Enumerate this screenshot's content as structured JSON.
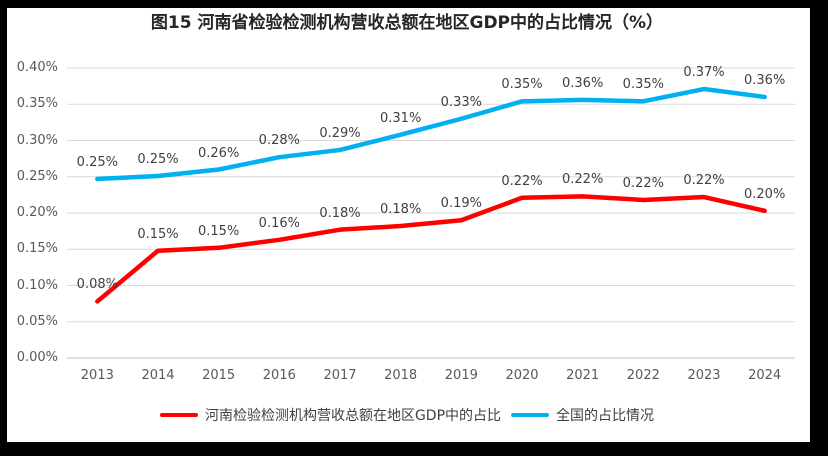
{
  "chart_data": {
    "type": "line",
    "title": "图15  河南省检验检测机构营收总额在地区GDP中的占比情况（%）",
    "categories": [
      "2013",
      "2014",
      "2015",
      "2016",
      "2017",
      "2018",
      "2019",
      "2020",
      "2021",
      "2022",
      "2023",
      "2024"
    ],
    "series": [
      {
        "id": "henan",
        "name": "河南检验检测机构营收总额在地区GDP中的占比",
        "color": "#FF0000",
        "values": [
          0.078,
          0.148,
          0.152,
          0.163,
          0.177,
          0.182,
          0.19,
          0.221,
          0.223,
          0.218,
          0.222,
          0.203
        ],
        "labels": [
          "0.08%",
          "0.15%",
          "0.15%",
          "0.16%",
          "0.18%",
          "0.18%",
          "0.19%",
          "0.22%",
          "0.22%",
          "0.22%",
          "0.22%",
          "0.20%"
        ]
      },
      {
        "id": "national",
        "name": "全国的占比情况",
        "color": "#00B0F0",
        "values": [
          0.247,
          0.251,
          0.26,
          0.277,
          0.287,
          0.308,
          0.33,
          0.354,
          0.356,
          0.354,
          0.371,
          0.36
        ],
        "labels": [
          "0.25%",
          "0.25%",
          "0.26%",
          "0.28%",
          "0.29%",
          "0.31%",
          "0.33%",
          "0.35%",
          "0.36%",
          "0.35%",
          "0.37%",
          "0.36%"
        ]
      }
    ],
    "xlabel": "",
    "ylabel": "",
    "y_axis": {
      "min": 0,
      "max": 0.4,
      "step": 0.05,
      "tick_labels": [
        "0.00%",
        "0.05%",
        "0.10%",
        "0.15%",
        "0.20%",
        "0.25%",
        "0.30%",
        "0.35%",
        "0.40%"
      ]
    },
    "grid": "horizontal",
    "legend_position": "bottom"
  }
}
